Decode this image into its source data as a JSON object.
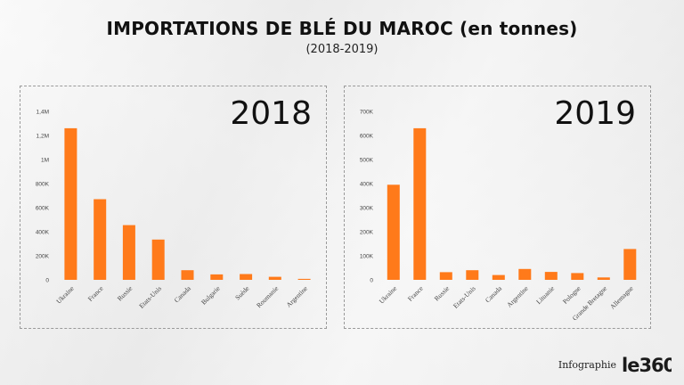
{
  "header": {
    "title": "IMPORTATIONS DE BLÉ DU MAROC (en tonnes)",
    "subtitle": "(2018-2019)"
  },
  "footer": {
    "credit": "Infographie",
    "logo_text": "le360"
  },
  "colors": {
    "bar": "#ff7a1a",
    "axis_text": "#444444",
    "panel_border": "#9a9a9a"
  },
  "chart_data": [
    {
      "type": "bar",
      "title": "2018",
      "categories": [
        "Ukraine",
        "France",
        "Russie",
        "Etats-Unis",
        "Canada",
        "Bulgarie",
        "Suède",
        "Roumanie",
        "Argentine"
      ],
      "values": [
        1260000,
        670000,
        455000,
        335000,
        80000,
        45000,
        48000,
        25000,
        8000
      ],
      "ylim": [
        0,
        1400000
      ],
      "yticks": [
        0,
        200000,
        400000,
        600000,
        800000,
        1000000,
        1200000,
        1400000
      ],
      "ytick_labels": [
        "0",
        "200K",
        "400K",
        "600K",
        "800K",
        "1M",
        "1,2M",
        "1,4M"
      ],
      "grid": false
    },
    {
      "type": "bar",
      "title": "2019",
      "categories": [
        "Ukraine",
        "France",
        "Russie",
        "Etats-Unis",
        "Canada",
        "Argentine",
        "Lituanie",
        "Pologne",
        "Grande Bretagne",
        "Allemagne"
      ],
      "values": [
        395000,
        630000,
        32000,
        40000,
        20000,
        45000,
        33000,
        28000,
        10000,
        128000
      ],
      "ylim": [
        0,
        700000
      ],
      "yticks": [
        0,
        100000,
        200000,
        300000,
        400000,
        500000,
        600000,
        700000
      ],
      "ytick_labels": [
        "0",
        "100K",
        "200K",
        "300K",
        "400K",
        "500K",
        "600K",
        "700K"
      ],
      "grid": false
    }
  ]
}
